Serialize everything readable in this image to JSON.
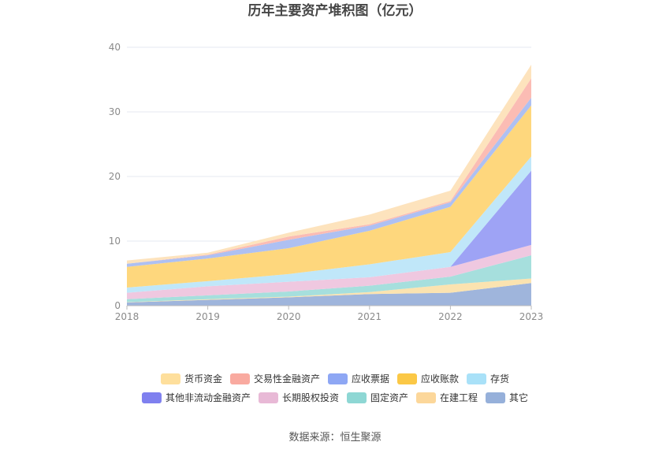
{
  "chart_data": {
    "type": "area",
    "stacked": true,
    "title": "历年主要资产堆积图（亿元）",
    "x": [
      "2018",
      "2019",
      "2020",
      "2021",
      "2022",
      "2023"
    ],
    "ylim": [
      0,
      40
    ],
    "yticks": [
      "0",
      "10",
      "20",
      "30",
      "40"
    ],
    "grid": true,
    "legend_position": "bottom",
    "series": [
      {
        "name": "其它",
        "color": "#9fb5dc",
        "values": [
          0.5,
          0.9,
          1.3,
          1.8,
          2.0,
          3.5
        ]
      },
      {
        "name": "在建工程",
        "color": "#fbe3b0",
        "values": [
          0.05,
          0.1,
          0.1,
          0.3,
          1.3,
          0.7
        ]
      },
      {
        "name": "固定资产",
        "color": "#a6dfdd",
        "values": [
          0.45,
          0.6,
          0.8,
          1.0,
          1.2,
          3.6
        ]
      },
      {
        "name": "长期股权投资",
        "color": "#efc8e0",
        "values": [
          1.0,
          1.4,
          1.5,
          1.3,
          1.5,
          1.6
        ]
      },
      {
        "name": "其他非流动金融资产",
        "color": "#9ea3f5",
        "values": [
          0.0,
          0.0,
          0.0,
          0.0,
          0.0,
          11.5
        ]
      },
      {
        "name": "存货",
        "color": "#c0e7f9",
        "values": [
          0.8,
          0.8,
          1.2,
          2.0,
          2.3,
          2.2
        ]
      },
      {
        "name": "应收账款",
        "color": "#fed77d",
        "values": [
          3.2,
          3.5,
          4.0,
          5.2,
          7.0,
          7.9
        ]
      },
      {
        "name": "应收票据",
        "color": "#aec0f2",
        "values": [
          0.5,
          0.5,
          1.3,
          0.8,
          0.7,
          1.2
        ]
      },
      {
        "name": "交易性金融资产",
        "color": "#fbbcb4",
        "values": [
          0.0,
          0.1,
          0.5,
          0.2,
          0.2,
          3.0
        ]
      },
      {
        "name": "货币资金",
        "color": "#fde3bd",
        "values": [
          0.5,
          0.3,
          0.6,
          1.5,
          1.6,
          2.1
        ]
      }
    ],
    "legend_order": [
      "货币资金",
      "交易性金融资产",
      "应收票据",
      "应收账款",
      "存货",
      "其他非流动金融资产",
      "长期股权投资",
      "固定资产",
      "在建工程",
      "其它"
    ],
    "legend_colors": {
      "货币资金": "#fedf9c",
      "交易性金融资产": "#f9aaa0",
      "应收票据": "#8ea7f4",
      "应收账款": "#fbc846",
      "存货": "#a9e1f8",
      "其他非流动金融资产": "#7f80ef",
      "长期股权投资": "#e8b9d6",
      "固定资产": "#8ed7d4",
      "在建工程": "#fcd79a",
      "其它": "#96b0da"
    }
  },
  "source_text": "数据来源：恒生聚源"
}
